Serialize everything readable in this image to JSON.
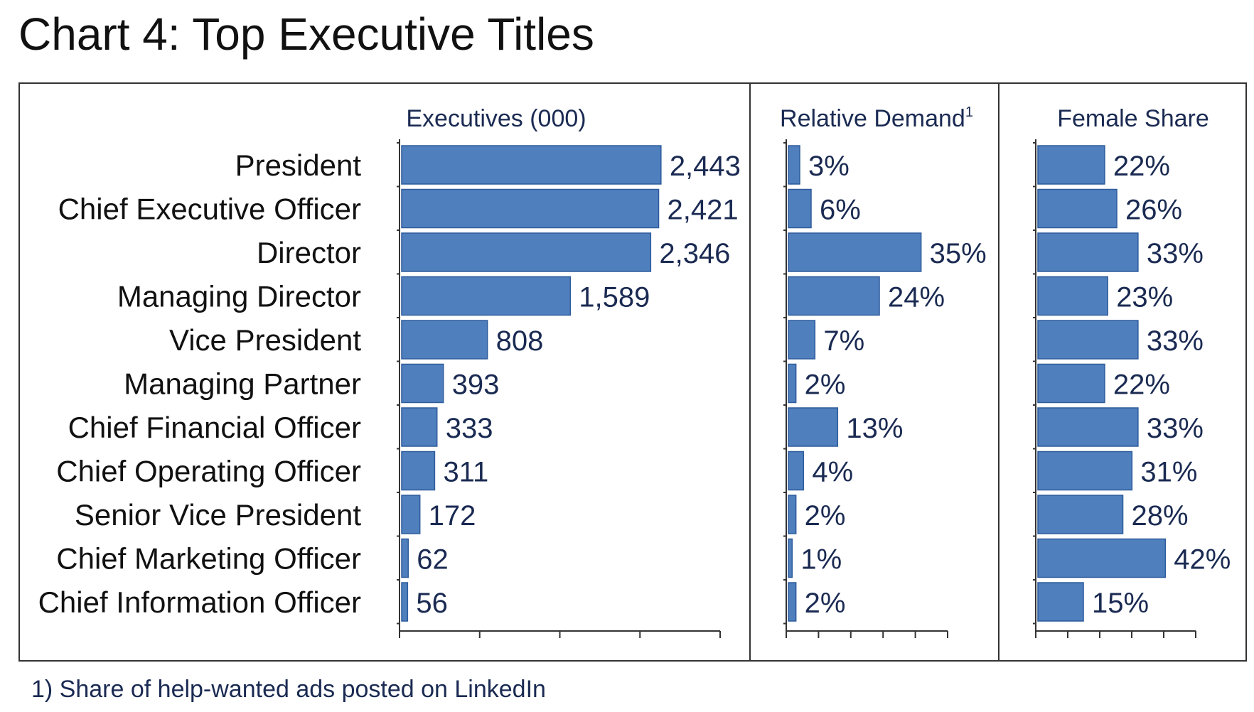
{
  "title": "Chart 4: Top Executive Titles",
  "footnote": "1) Share of help-wanted ads posted on LinkedIn",
  "colors": {
    "bar": "#4f7fbd",
    "bar_edge": "#2e5c9c",
    "value_text": "#1a2a52",
    "frame": "#333333"
  },
  "chart_data": [
    {
      "type": "bar",
      "orientation": "horizontal",
      "title": "Executives (000)",
      "categories": [
        "President",
        "Chief Executive Officer",
        "Director",
        "Managing Director",
        "Vice President",
        "Managing Partner",
        "Chief Financial Officer",
        "Chief Operating Officer",
        "Senior Vice President",
        "Chief Marketing Officer",
        "Chief Information Officer"
      ],
      "values": [
        2443,
        2421,
        2346,
        1589,
        808,
        393,
        333,
        311,
        172,
        62,
        56
      ],
      "labels": [
        "2,443",
        "2,421",
        "2,346",
        "1,589",
        "808",
        "393",
        "333",
        "311",
        "172",
        "62",
        "56"
      ],
      "xlim": [
        0,
        3000
      ],
      "ticks": 4
    },
    {
      "type": "bar",
      "orientation": "horizontal",
      "title": "Relative Demand",
      "title_superscript": "1",
      "values": [
        3,
        6,
        35,
        24,
        7,
        2,
        13,
        4,
        2,
        1,
        2
      ],
      "labels": [
        "3%",
        "6%",
        "35%",
        "24%",
        "7%",
        "2%",
        "13%",
        "4%",
        "2%",
        "1%",
        "2%"
      ],
      "xlim": [
        0,
        42
      ],
      "ticks": 5
    },
    {
      "type": "bar",
      "orientation": "horizontal",
      "title": "Female Share",
      "values": [
        22,
        26,
        33,
        23,
        33,
        22,
        33,
        31,
        28,
        42,
        15
      ],
      "labels": [
        "22%",
        "26%",
        "33%",
        "23%",
        "33%",
        "22%",
        "33%",
        "31%",
        "28%",
        "42%",
        "15%"
      ],
      "xlim": [
        0,
        52
      ],
      "ticks": 5
    }
  ]
}
